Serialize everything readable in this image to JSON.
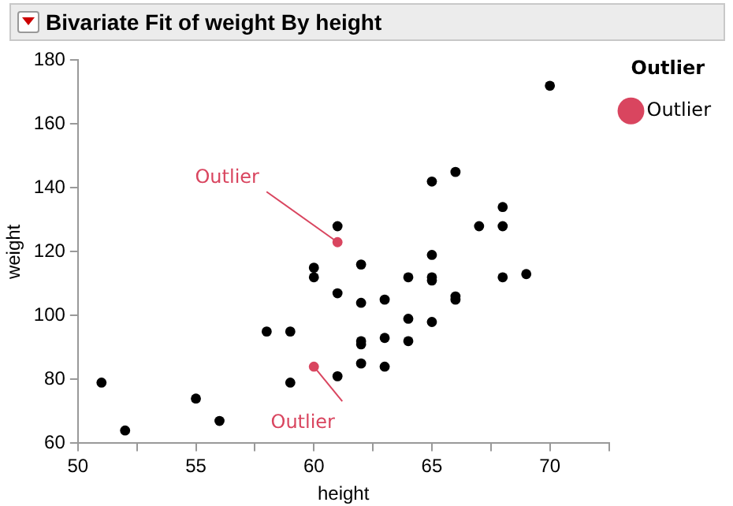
{
  "chart_data": {
    "type": "scatter",
    "title": "Bivariate Fit of weight By height",
    "xlabel": "height",
    "ylabel": "weight",
    "legend_title": "Outlier",
    "legend": "right",
    "grid": false,
    "marker": "circle",
    "xlim": [
      50,
      72.5
    ],
    "xticks": [
      50,
      {
        "value": 52.5,
        "label": null
      },
      55,
      {
        "value": 57.5,
        "label": null
      },
      60,
      {
        "value": 62.5,
        "label": null
      },
      65,
      {
        "value": 67.5,
        "label": null
      },
      70,
      {
        "value": 72.5,
        "label": null
      }
    ],
    "ylim": [
      60,
      180
    ],
    "yticks": [
      60,
      80,
      100,
      120,
      140,
      160,
      180
    ],
    "series": [
      {
        "color": "#000000",
        "x": [
          51,
          52,
          55,
          56,
          58,
          59,
          59,
          60,
          60,
          61,
          61,
          61,
          62,
          62,
          62,
          62,
          62,
          63,
          63,
          63,
          64,
          64,
          64,
          65,
          65,
          65,
          65,
          65,
          66,
          66,
          66,
          67,
          68,
          68,
          68,
          69,
          70
        ],
        "values": [
          79,
          64,
          74,
          67,
          95,
          95,
          79,
          115,
          112,
          128,
          107,
          81,
          116,
          104,
          92,
          91,
          85,
          105,
          93,
          84,
          112,
          99,
          92,
          142,
          119,
          112,
          111,
          98,
          145,
          106,
          105,
          128,
          134,
          128,
          112,
          113,
          172
        ]
      },
      {
        "name": "Outlier",
        "color": "#d9455f",
        "x": [
          61,
          60
        ],
        "values": [
          123,
          84
        ]
      }
    ],
    "annotations": [
      {
        "text": "Outlier",
        "x": 61,
        "y": 123
      },
      {
        "text": "Outlier",
        "x": 60,
        "y": 84
      }
    ]
  }
}
